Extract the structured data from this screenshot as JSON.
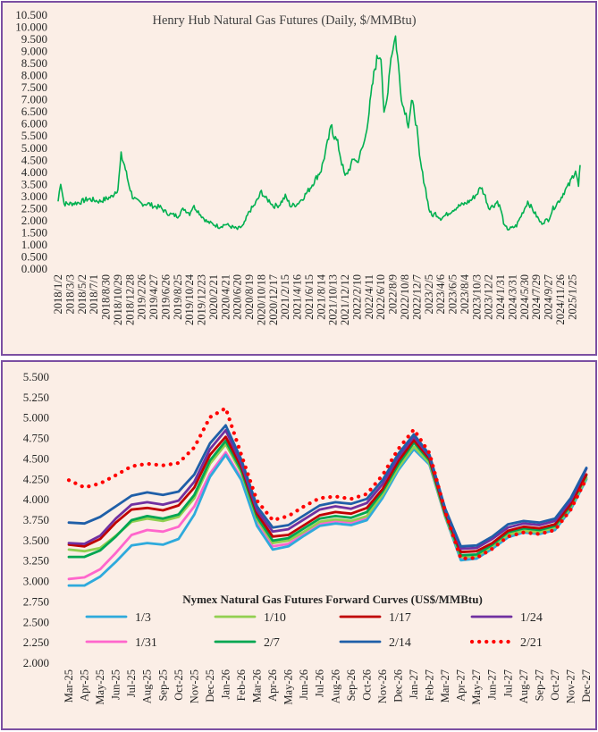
{
  "chart_data": [
    {
      "type": "line",
      "title": "Henry Hub Natural Gas Futures (Daily,  $/MMBtu)",
      "ylim": [
        0,
        10.5
      ],
      "y_ticks": [
        "0.000",
        "0.500",
        "1.000",
        "1.500",
        "2.000",
        "2.500",
        "3.000",
        "3.500",
        "4.000",
        "4.500",
        "5.000",
        "5.500",
        "6.000",
        "6.500",
        "7.000",
        "7.500",
        "8.000",
        "8.500",
        "9.000",
        "9.500",
        "10.000",
        "10.500"
      ],
      "x_tick_labels": [
        "2018/1/2",
        "2018/3/3",
        "2018/5/2",
        "2018/7/1",
        "2018/8/30",
        "2018/10/29",
        "2018/12/28",
        "2019/2/26",
        "2019/4/27",
        "2019/6/26",
        "2019/8/25",
        "2019/10/24",
        "2019/12/23",
        "2020/2/21",
        "2020/4/21",
        "2020/6/20",
        "2020/8/19",
        "2020/10/18",
        "2020/12/17",
        "2021/2/15",
        "2021/4/16",
        "2021/6/15",
        "2021/8/14",
        "2021/10/13",
        "2021/12/12",
        "2022/2/10",
        "2022/4/11",
        "2022/6/10",
        "2022/8/9",
        "2022/10/8",
        "2022/12/7",
        "2023/2/5",
        "2023/4/6",
        "2023/6/5",
        "2023/8/4",
        "2023/10/3",
        "2023/12/2",
        "2024/1/31",
        "2024/3/31",
        "2024/5/30",
        "2024/7/29",
        "2024/9/27",
        "2024/11/26",
        "2025/1/25"
      ],
      "grid": false,
      "legend": "none",
      "series": [
        {
          "color": "#00b050",
          "x": [
            "2018/1/2",
            "2018/1/15",
            "2018/2/1",
            "2018/3/3",
            "2018/4/15",
            "2018/5/2",
            "2018/6/1",
            "2018/7/1",
            "2018/7/30",
            "2018/8/30",
            "2018/9/30",
            "2018/10/15",
            "2018/10/29",
            "2018/11/14",
            "2018/12/1",
            "2018/12/20",
            "2019/1/10",
            "2019/2/1",
            "2019/2/26",
            "2019/3/30",
            "2019/4/27",
            "2019/5/30",
            "2019/6/26",
            "2019/7/25",
            "2019/8/25",
            "2019/9/25",
            "2019/10/24",
            "2019/11/10",
            "2019/11/25",
            "2019/12/23",
            "2020/1/20",
            "2020/2/21",
            "2020/3/20",
            "2020/4/21",
            "2020/5/20",
            "2020/6/20",
            "2020/7/20",
            "2020/8/19",
            "2020/9/10",
            "2020/10/1",
            "2020/10/18",
            "2020/11/10",
            "2020/12/1",
            "2020/12/17",
            "2021/1/15",
            "2021/2/15",
            "2021/3/15",
            "2021/4/16",
            "2021/5/15",
            "2021/6/15",
            "2021/7/15",
            "2021/8/14",
            "2021/9/15",
            "2021/10/6",
            "2021/10/13",
            "2021/11/5",
            "2021/11/25",
            "2021/12/12",
            "2022/1/5",
            "2022/1/27",
            "2022/2/10",
            "2022/3/5",
            "2022/3/20",
            "2022/4/11",
            "2022/4/25",
            "2022/5/10",
            "2022/5/25",
            "2022/6/10",
            "2022/6/25",
            "2022/7/10",
            "2022/7/25",
            "2022/8/9",
            "2022/8/22",
            "2022/9/10",
            "2022/9/25",
            "2022/10/8",
            "2022/10/25",
            "2022/11/10",
            "2022/11/25",
            "2022/12/7",
            "2022/12/20",
            "2023/1/5",
            "2023/1/20",
            "2023/2/5",
            "2023/2/20",
            "2023/3/10",
            "2023/4/6",
            "2023/5/5",
            "2023/6/5",
            "2023/7/5",
            "2023/8/4",
            "2023/9/5",
            "2023/10/3",
            "2023/10/25",
            "2023/11/15",
            "2023/12/2",
            "2023/12/25",
            "2024/1/15",
            "2024/1/31",
            "2024/2/20",
            "2024/3/10",
            "2024/3/31",
            "2024/4/20",
            "2024/5/30",
            "2024/6/15",
            "2024/7/29",
            "2024/8/20",
            "2024/9/27",
            "2024/10/20",
            "2024/11/26",
            "2024/12/15",
            "2025/1/10",
            "2025/1/25",
            "2025/2/10",
            "2025/2/25",
            "2025/3/5"
          ],
          "y": [
            2.8,
            3.6,
            2.7,
            2.7,
            2.75,
            2.8,
            2.9,
            2.85,
            2.8,
            2.9,
            3.0,
            3.2,
            3.3,
            4.7,
            4.3,
            3.6,
            3.0,
            2.8,
            2.7,
            2.7,
            2.6,
            2.55,
            2.35,
            2.25,
            2.2,
            2.5,
            2.3,
            2.6,
            2.5,
            2.2,
            1.95,
            1.85,
            1.75,
            1.85,
            1.75,
            1.65,
            1.8,
            2.4,
            2.6,
            2.9,
            3.2,
            2.9,
            2.8,
            2.6,
            2.65,
            3.0,
            2.6,
            2.7,
            2.95,
            3.3,
            3.7,
            4.1,
            5.2,
            6.0,
            5.6,
            5.2,
            4.4,
            3.8,
            4.2,
            4.6,
            4.4,
            4.9,
            5.3,
            6.5,
            7.4,
            8.3,
            8.8,
            8.9,
            6.3,
            7.0,
            8.5,
            9.2,
            9.6,
            8.0,
            6.8,
            6.6,
            6.0,
            6.9,
            6.5,
            5.8,
            4.6,
            3.9,
            3.3,
            2.5,
            2.2,
            2.3,
            2.1,
            2.25,
            2.45,
            2.6,
            2.7,
            2.85,
            3.1,
            3.4,
            3.0,
            2.55,
            2.6,
            2.8,
            2.5,
            1.75,
            1.65,
            1.7,
            1.8,
            2.5,
            2.8,
            2.2,
            1.9,
            2.05,
            2.5,
            2.9,
            3.2,
            3.5,
            3.8,
            4.1,
            3.4,
            4.3
          ]
        }
      ]
    },
    {
      "type": "line",
      "title": "Nymex  Natural Gas Futures Forward  Curves (US$/MMBtu)",
      "ylim": [
        2.0,
        5.5
      ],
      "y_ticks": [
        "2.000",
        "2.250",
        "2.500",
        "2.750",
        "3.000",
        "3.250",
        "3.500",
        "3.750",
        "4.000",
        "4.250",
        "4.500",
        "4.750",
        "5.000",
        "5.250",
        "5.500"
      ],
      "categories": [
        "Mar-25",
        "Apr-25",
        "May-25",
        "Jun-25",
        "Jul-25",
        "Aug-25",
        "Sep-25",
        "Oct-25",
        "Nov-25",
        "Dec-25",
        "Jan-26",
        "Feb-26",
        "Mar-26",
        "Apr-26",
        "May-26",
        "Jun-26",
        "Jul-26",
        "Aug-26",
        "Sep-26",
        "Oct-26",
        "Nov-26",
        "Dec-26",
        "Jan-27",
        "Feb-27",
        "Mar-27",
        "Apr-27",
        "May-27",
        "Jun-27",
        "Jul-27",
        "Aug-27",
        "Sep-27",
        "Oct-27",
        "Nov-27",
        "Dec-27"
      ],
      "x_tick_labels": [
        "Mar-25",
        "Apr-25",
        "May-25",
        "Jun-25",
        "Jul-25",
        "Aug-25",
        "Sep-25",
        "Oct-25",
        "Nov-25",
        "Dec-25",
        "Jan-26",
        "Feb-26",
        "Mar-26",
        "Apr-26",
        "May-26",
        "Jun-26",
        "Jul-26",
        "Aug-26",
        "Sep-26",
        "Oct-26",
        "Nov-26",
        "Dec-26",
        "Jan-27",
        "Feb-27",
        "Mar-27",
        "Apr-27",
        "May-27",
        "Jun-27",
        "Jul-27",
        "Aug-27",
        "Sep-27",
        "Oct-27",
        "Nov-27",
        "Dec-27"
      ],
      "grid": false,
      "legend": "bottom-inside",
      "series": [
        {
          "name": "1/3",
          "color": "#2eaadc",
          "dash": "solid",
          "values": [
            2.95,
            2.95,
            3.06,
            3.24,
            3.44,
            3.47,
            3.45,
            3.52,
            3.82,
            4.28,
            4.55,
            4.24,
            3.68,
            3.39,
            3.43,
            3.56,
            3.68,
            3.71,
            3.69,
            3.75,
            4.02,
            4.36,
            4.62,
            4.43,
            3.79,
            3.26,
            3.28,
            3.4,
            3.54,
            3.6,
            3.58,
            3.63,
            3.88,
            4.25
          ]
        },
        {
          "name": "1/10",
          "color": "#92d050",
          "dash": "solid",
          "values": [
            3.39,
            3.37,
            3.41,
            3.56,
            3.73,
            3.77,
            3.74,
            3.79,
            4.02,
            4.44,
            4.68,
            4.33,
            3.76,
            3.47,
            3.5,
            3.61,
            3.73,
            3.76,
            3.74,
            3.8,
            4.06,
            4.39,
            4.65,
            4.45,
            3.8,
            3.3,
            3.31,
            3.43,
            3.57,
            3.62,
            3.6,
            3.66,
            3.91,
            4.27
          ]
        },
        {
          "name": "1/17",
          "color": "#c00000",
          "dash": "solid",
          "values": [
            3.45,
            3.43,
            3.52,
            3.72,
            3.88,
            3.9,
            3.87,
            3.93,
            4.15,
            4.55,
            4.77,
            4.4,
            3.83,
            3.55,
            3.57,
            3.69,
            3.81,
            3.85,
            3.83,
            3.9,
            4.13,
            4.47,
            4.73,
            4.5,
            3.84,
            3.36,
            3.37,
            3.47,
            3.62,
            3.67,
            3.65,
            3.7,
            3.95,
            4.31
          ]
        },
        {
          "name": "1/24",
          "color": "#7030a0",
          "dash": "solid",
          "values": [
            3.47,
            3.46,
            3.56,
            3.77,
            3.94,
            3.97,
            3.94,
            3.99,
            4.22,
            4.62,
            4.85,
            4.44,
            3.87,
            3.61,
            3.64,
            3.76,
            3.88,
            3.92,
            3.89,
            3.96,
            4.19,
            4.52,
            4.77,
            4.53,
            3.87,
            3.4,
            3.41,
            3.52,
            3.66,
            3.71,
            3.69,
            3.74,
            3.99,
            4.38
          ]
        },
        {
          "name": "1/31",
          "color": "#ff66cc",
          "dash": "solid",
          "values": [
            3.03,
            3.05,
            3.15,
            3.35,
            3.57,
            3.63,
            3.61,
            3.67,
            3.92,
            4.32,
            4.58,
            4.26,
            3.7,
            3.43,
            3.46,
            3.58,
            3.7,
            3.74,
            3.72,
            3.78,
            4.03,
            4.37,
            4.62,
            4.43,
            3.79,
            3.27,
            3.28,
            3.41,
            3.55,
            3.6,
            3.59,
            3.64,
            3.88,
            4.26
          ]
        },
        {
          "name": "2/7",
          "color": "#00a651",
          "dash": "solid",
          "values": [
            3.3,
            3.3,
            3.38,
            3.55,
            3.75,
            3.8,
            3.77,
            3.82,
            4.06,
            4.48,
            4.72,
            4.36,
            3.79,
            3.5,
            3.53,
            3.65,
            3.77,
            3.8,
            3.78,
            3.85,
            4.1,
            4.43,
            4.7,
            4.48,
            3.82,
            3.32,
            3.33,
            3.45,
            3.6,
            3.65,
            3.63,
            3.68,
            3.93,
            4.3
          ]
        },
        {
          "name": "2/14",
          "color": "#1f5fa8",
          "dash": "solid",
          "values": [
            3.72,
            3.71,
            3.79,
            3.92,
            4.05,
            4.09,
            4.06,
            4.1,
            4.31,
            4.69,
            4.91,
            4.49,
            3.92,
            3.66,
            3.69,
            3.81,
            3.93,
            3.97,
            3.95,
            4.01,
            4.24,
            4.56,
            4.8,
            4.55,
            3.89,
            3.43,
            3.44,
            3.55,
            3.7,
            3.74,
            3.72,
            3.77,
            4.02,
            4.39
          ]
        },
        {
          "name": "2/21",
          "color": "#ff0000",
          "dash": "dotted",
          "values": [
            4.24,
            4.15,
            4.2,
            4.3,
            4.41,
            4.44,
            4.42,
            4.45,
            4.64,
            5.01,
            5.12,
            4.55,
            3.99,
            3.75,
            3.8,
            3.92,
            4.02,
            4.04,
            4.01,
            4.07,
            4.3,
            4.62,
            4.86,
            4.57,
            3.85,
            3.28,
            3.29,
            3.4,
            3.55,
            3.6,
            3.58,
            3.63,
            3.88,
            4.26
          ]
        }
      ]
    }
  ]
}
